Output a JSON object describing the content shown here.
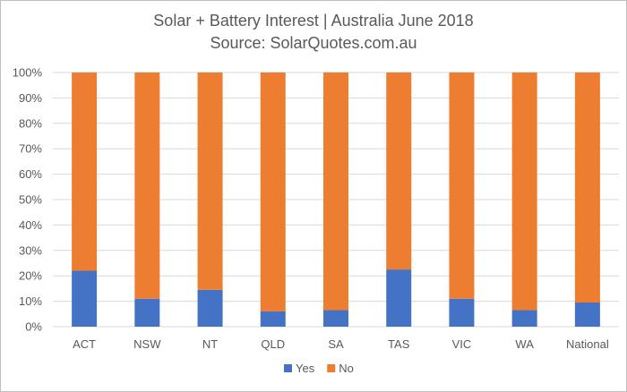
{
  "chart_data": {
    "type": "bar",
    "stacked": true,
    "normalized": true,
    "title": "Solar + Battery Interest  | Australia June 2018",
    "subtitle": "Source: SolarQuotes.com.au",
    "categories": [
      "ACT",
      "NSW",
      "NT",
      "QLD",
      "SA",
      "TAS",
      "VIC",
      "WA",
      "National"
    ],
    "series": [
      {
        "name": "Yes",
        "color": "#4472c4",
        "values": [
          22,
          11,
          14.5,
          6,
          6.5,
          22.5,
          11,
          6.5,
          9.5
        ]
      },
      {
        "name": "No",
        "color": "#ed7d31",
        "values": [
          78,
          89,
          85.5,
          94,
          93.5,
          77.5,
          89,
          93.5,
          90.5
        ]
      }
    ],
    "yticks": [
      "0%",
      "10%",
      "20%",
      "30%",
      "40%",
      "50%",
      "60%",
      "70%",
      "80%",
      "90%",
      "100%"
    ],
    "ylim": [
      0,
      100
    ],
    "grid": true,
    "legend": "bottom"
  }
}
